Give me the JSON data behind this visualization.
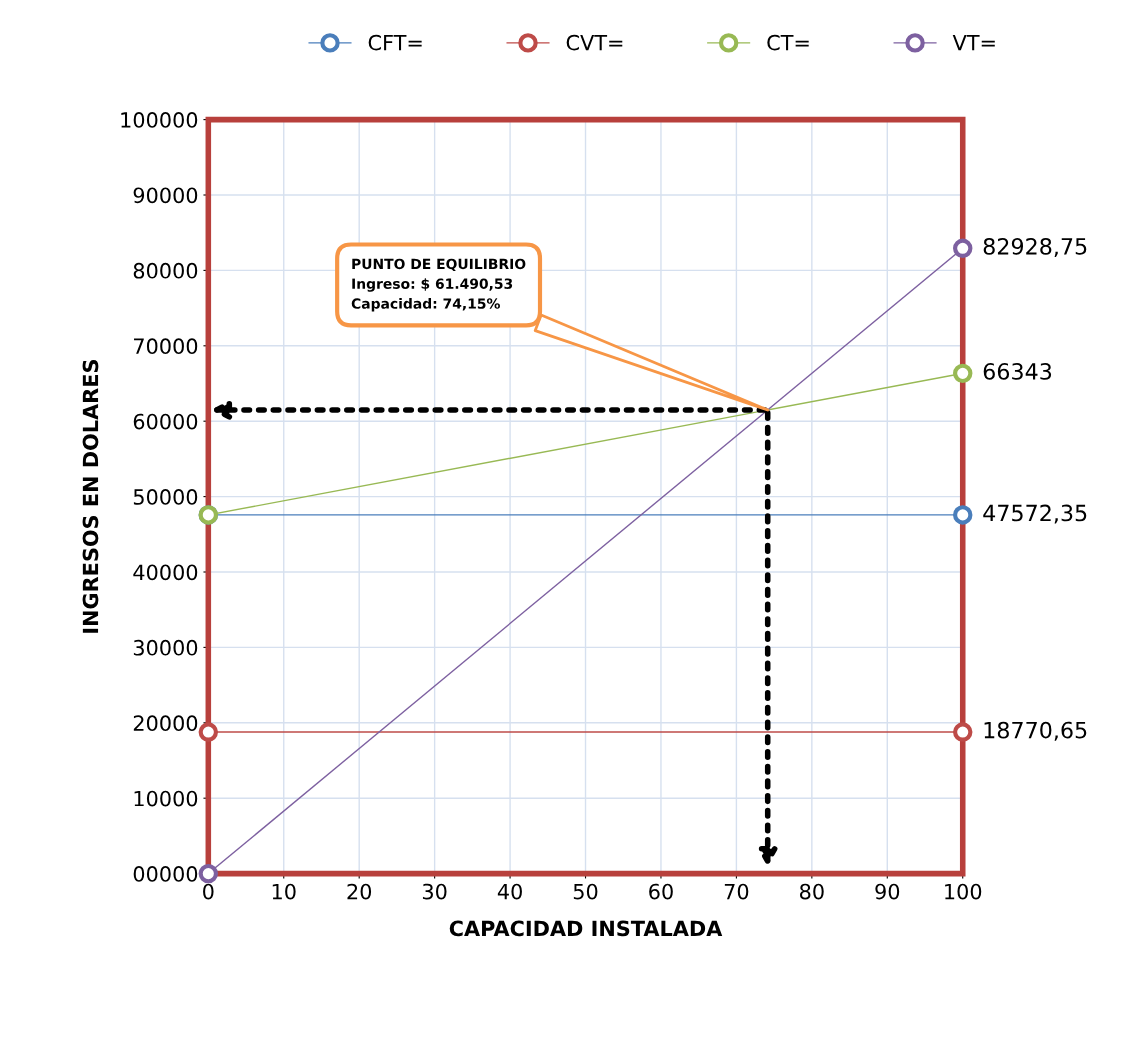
{
  "chart_data": {
    "type": "line",
    "xlabel": "CAPACIDAD INSTALADA",
    "ylabel": "INGRESOS EN DOLARES",
    "x": [
      0,
      100
    ],
    "series": [
      {
        "name": "CFT=",
        "color": "#4a7ebb",
        "values": [
          47572.35,
          47572.35
        ],
        "value_labels": [
          null,
          "47572,35"
        ]
      },
      {
        "name": "CVT=",
        "color": "#be4b48",
        "values": [
          18770.65,
          18770.65
        ],
        "value_labels": [
          null,
          "18770,65"
        ]
      },
      {
        "name": "CT=",
        "color": "#98b954",
        "values": [
          47572.35,
          66343
        ],
        "value_labels": [
          null,
          "66343"
        ]
      },
      {
        "name": "VT=",
        "color": "#7d60a0",
        "values": [
          0,
          82928.75
        ],
        "value_labels": [
          null,
          "82928,75"
        ]
      }
    ],
    "xlim": [
      0,
      100
    ],
    "xticks": [
      0,
      10,
      20,
      30,
      40,
      50,
      60,
      70,
      80,
      90,
      100
    ],
    "ylim": [
      0,
      100000
    ],
    "yticks": [
      {
        "value": 0,
        "label": "00000"
      },
      10000,
      20000,
      30000,
      40000,
      50000,
      60000,
      70000,
      80000,
      90000,
      100000
    ],
    "annotations": [
      {
        "text": "PUNTO DE EQUILIBRIO\nIngreso: $ 61.490,53\nCapacidad: 74,15%",
        "x": 74.15,
        "y": 61490.53
      }
    ],
    "grid": true,
    "legend": "top",
    "marker": "circle",
    "line_style": "solid"
  }
}
